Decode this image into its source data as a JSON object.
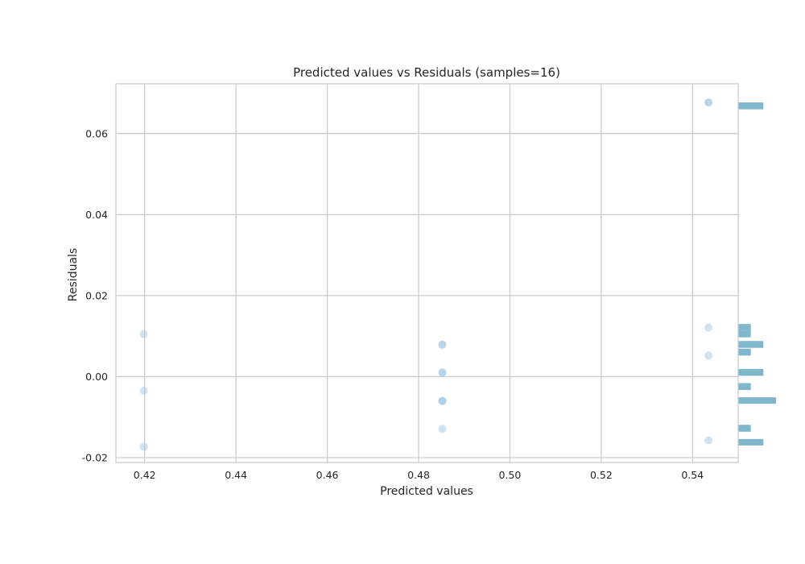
{
  "chart_data": {
    "type": "scatter",
    "title": "Predicted values vs Residuals (samples=16)",
    "xlabel": "Predicted values",
    "ylabel": "Residuals",
    "xlim": [
      0.4137,
      0.55
    ],
    "ylim": [
      -0.0212,
      0.0723
    ],
    "grid": true,
    "x_ticks": [
      0.42,
      0.44,
      0.46,
      0.48,
      0.5,
      0.52,
      0.54
    ],
    "x_tick_labels": [
      "0.42",
      "0.44",
      "0.46",
      "0.48",
      "0.50",
      "0.52",
      "0.54"
    ],
    "y_ticks": [
      -0.02,
      0.0,
      0.02,
      0.04,
      0.06
    ],
    "y_tick_labels": [
      "-0.02",
      "0.00",
      "0.02",
      "0.04",
      "0.06"
    ],
    "point_color": "#a4c8e4",
    "series": [
      {
        "points": [
          {
            "x": 0.4198,
            "y": 0.0105
          },
          {
            "x": 0.4198,
            "y": -0.0035
          },
          {
            "x": 0.4198,
            "y": -0.0173
          },
          {
            "x": 0.4852,
            "y": 0.0079
          },
          {
            "x": 0.4852,
            "y": 0.0079
          },
          {
            "x": 0.4852,
            "y": 0.001
          },
          {
            "x": 0.4852,
            "y": 0.001
          },
          {
            "x": 0.4852,
            "y": -0.006
          },
          {
            "x": 0.4852,
            "y": -0.006
          },
          {
            "x": 0.4852,
            "y": -0.006
          },
          {
            "x": 0.4852,
            "y": -0.0129
          },
          {
            "x": 0.5435,
            "y": 0.0677
          },
          {
            "x": 0.5435,
            "y": 0.0677
          },
          {
            "x": 0.5435,
            "y": 0.0121
          },
          {
            "x": 0.5435,
            "y": 0.0052
          },
          {
            "x": 0.5435,
            "y": -0.0157
          }
        ]
      }
    ],
    "histogram": {
      "orientation": "horizontal",
      "color": "#7fb8cc",
      "max_count": 3,
      "bins": [
        {
          "y0": 0.066,
          "y1": 0.0677,
          "count": 2
        },
        {
          "y0": 0.0114,
          "y1": 0.013,
          "count": 1
        },
        {
          "y0": 0.0097,
          "y1": 0.0114,
          "count": 1
        },
        {
          "y0": 0.0071,
          "y1": 0.0088,
          "count": 2
        },
        {
          "y0": 0.0052,
          "y1": 0.0069,
          "count": 1
        },
        {
          "y0": 0.0002,
          "y1": 0.0019,
          "count": 2
        },
        {
          "y0": -0.0033,
          "y1": -0.0016,
          "count": 1
        },
        {
          "y0": -0.0067,
          "y1": -0.0051,
          "count": 3
        },
        {
          "y0": -0.0136,
          "y1": -0.0119,
          "count": 1
        },
        {
          "y0": -0.017,
          "y1": -0.0154,
          "count": 2
        }
      ]
    }
  }
}
